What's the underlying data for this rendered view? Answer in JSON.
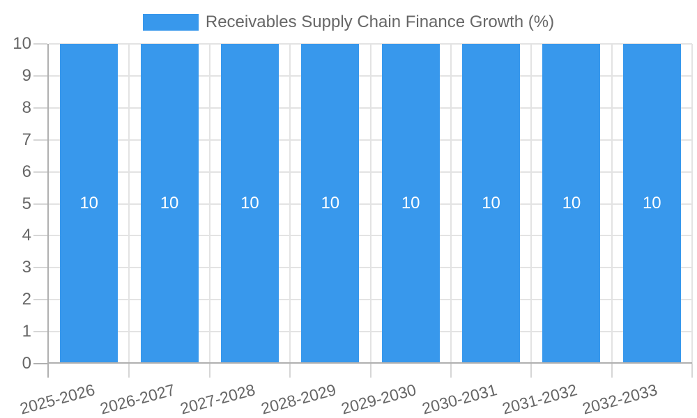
{
  "chart_data": {
    "type": "bar",
    "title": "",
    "legend_label": "Receivables Supply Chain Finance Growth (%)",
    "legend_position": "top",
    "categories": [
      "2025-2026",
      "2026-2027",
      "2027-2028",
      "2028-2029",
      "2029-2030",
      "2030-2031",
      "2031-2032",
      "2032-2033"
    ],
    "series": [
      {
        "name": "Receivables Supply Chain Finance Growth (%)",
        "values": [
          10,
          10,
          10,
          10,
          10,
          10,
          10,
          10
        ]
      }
    ],
    "value_labels": [
      "10",
      "10",
      "10",
      "10",
      "10",
      "10",
      "10",
      "10"
    ],
    "xlabel": "",
    "ylabel": "",
    "ylim": [
      0,
      10
    ],
    "yticks": [
      0,
      1,
      2,
      3,
      4,
      5,
      6,
      7,
      8,
      9,
      10
    ],
    "grid": true,
    "colors": {
      "bar": "#3898EC",
      "value_label": "#FFFFFF",
      "axis_text": "#666666",
      "gridline": "#E3E3E3",
      "axis_line": "#B0B0B0",
      "tick_mark": "#D6D6D6"
    }
  }
}
